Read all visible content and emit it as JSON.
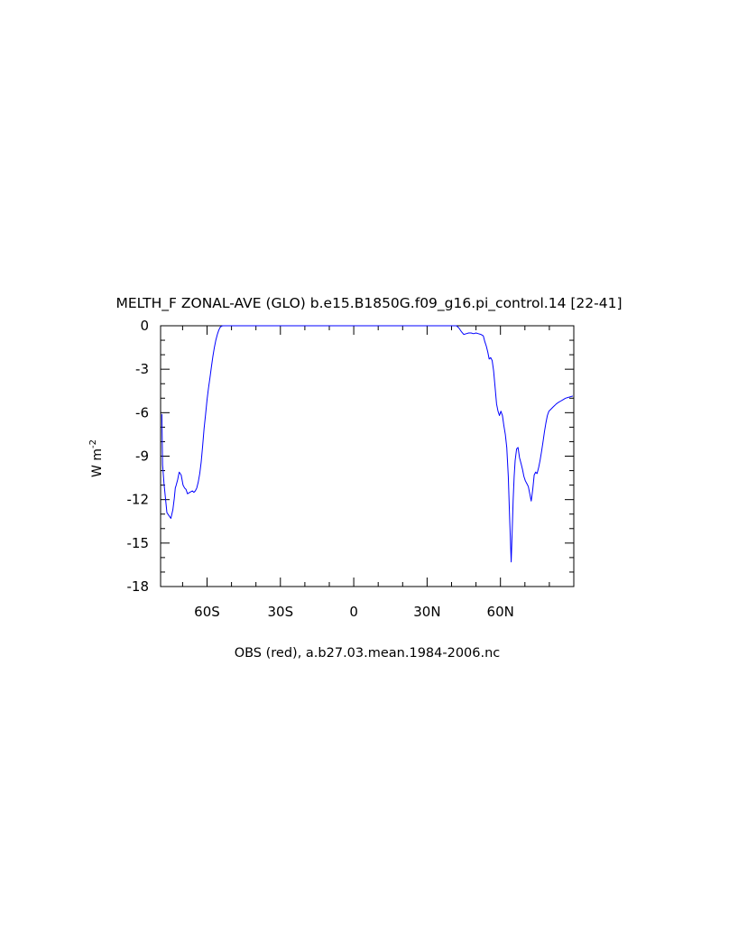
{
  "chart_data": {
    "type": "line",
    "title": "MELTH_F ZONAL-AVE (GLO) b.e15.B1850G.f09_g16.pi_control.14 [22-41]",
    "subtitle": "OBS (red), a.b27.03.mean.1984-2006.nc",
    "xlabel": "",
    "ylabel": "W m",
    "ylabel_superscript": "-2",
    "xlim": [
      -79,
      90
    ],
    "ylim": [
      -18,
      0
    ],
    "x_ticks": [
      {
        "value": -60,
        "label": "60S"
      },
      {
        "value": -30,
        "label": "30S"
      },
      {
        "value": 0,
        "label": "0"
      },
      {
        "value": 30,
        "label": "30N"
      },
      {
        "value": 60,
        "label": "60N"
      }
    ],
    "y_ticks": [
      {
        "value": 0,
        "label": "0"
      },
      {
        "value": -3,
        "label": "-3"
      },
      {
        "value": -6,
        "label": "-6"
      },
      {
        "value": -9,
        "label": "-9"
      },
      {
        "value": -12,
        "label": "-12"
      },
      {
        "value": -15,
        "label": "-15"
      },
      {
        "value": -18,
        "label": "-18"
      }
    ],
    "grid": false,
    "series": [
      {
        "color": "#0000ff",
        "x": [
          -78.5,
          -78.2,
          -77.6,
          -77.0,
          -76.4,
          -75.6,
          -74.8,
          -74.0,
          -73.4,
          -73.0,
          -72.6,
          -72.0,
          -71.4,
          -70.6,
          -69.8,
          -69.2,
          -68.6,
          -68.0,
          -67.0,
          -66.0,
          -65.4,
          -64.8,
          -64.2,
          -63.6,
          -63.0,
          -62.4,
          -61.8,
          -61.2,
          -60.6,
          -60.0,
          -59.4,
          -58.8,
          -58.2,
          -57.6,
          -57.0,
          -56.4,
          -55.8,
          -55.2,
          -54.6,
          -54.0,
          -53.4,
          -52.8,
          -52.2,
          -51.6,
          -51.0,
          42.0,
          43.0,
          44.0,
          45.0,
          46.0,
          47.0,
          48.0,
          49.0,
          50.0,
          51.0,
          52.0,
          53.0,
          53.6,
          54.2,
          54.8,
          55.4,
          56.0,
          56.6,
          57.2,
          57.8,
          58.4,
          59.0,
          59.6,
          60.2,
          60.8,
          61.4,
          62.0,
          62.6,
          63.2,
          63.8,
          64.4,
          64.8,
          65.2,
          65.6,
          66.0,
          66.6,
          67.2,
          67.8,
          68.4,
          69.0,
          69.6,
          70.2,
          70.8,
          71.4,
          72.0,
          72.6,
          73.2,
          73.8,
          74.4,
          75.0,
          75.6,
          76.2,
          76.8,
          77.4,
          78.0,
          78.6,
          79.2,
          79.8,
          80.4,
          81.0,
          81.6,
          82.2,
          82.8,
          83.6,
          84.6,
          85.6,
          86.6,
          87.6,
          88.6,
          89.6
        ],
        "y": [
          -6.1,
          -9.6,
          -10.9,
          -11.9,
          -12.9,
          -13.1,
          -13.3,
          -12.7,
          -11.9,
          -11.2,
          -11.0,
          -10.6,
          -10.1,
          -10.3,
          -11.0,
          -11.2,
          -11.3,
          -11.6,
          -11.5,
          -11.4,
          -11.5,
          -11.4,
          -11.2,
          -10.8,
          -10.2,
          -9.4,
          -8.3,
          -7.1,
          -6.1,
          -5.1,
          -4.3,
          -3.6,
          -2.8,
          -2.1,
          -1.5,
          -1.0,
          -0.6,
          -0.3,
          -0.1,
          -0.02,
          0.0,
          0.0,
          0.0,
          0.0,
          0.0,
          0.0,
          -0.15,
          -0.4,
          -0.6,
          -0.55,
          -0.5,
          -0.5,
          -0.55,
          -0.5,
          -0.55,
          -0.6,
          -0.7,
          -1.1,
          -1.4,
          -1.8,
          -2.3,
          -2.2,
          -2.4,
          -3.1,
          -4.2,
          -5.4,
          -5.9,
          -6.2,
          -5.9,
          -6.2,
          -6.9,
          -7.5,
          -8.4,
          -10.4,
          -13.5,
          -16.3,
          -14.2,
          -12.0,
          -10.4,
          -9.3,
          -8.5,
          -8.4,
          -9.1,
          -9.5,
          -9.9,
          -10.4,
          -10.7,
          -10.9,
          -11.1,
          -11.6,
          -12.1,
          -11.3,
          -10.3,
          -10.1,
          -10.2,
          -9.8,
          -9.3,
          -8.7,
          -8.0,
          -7.3,
          -6.7,
          -6.2,
          -5.9,
          -5.8,
          -5.7,
          -5.6,
          -5.5,
          -5.4,
          -5.3,
          -5.2,
          -5.1,
          -5.0,
          -4.95,
          -4.9,
          -4.85
        ]
      }
    ]
  }
}
